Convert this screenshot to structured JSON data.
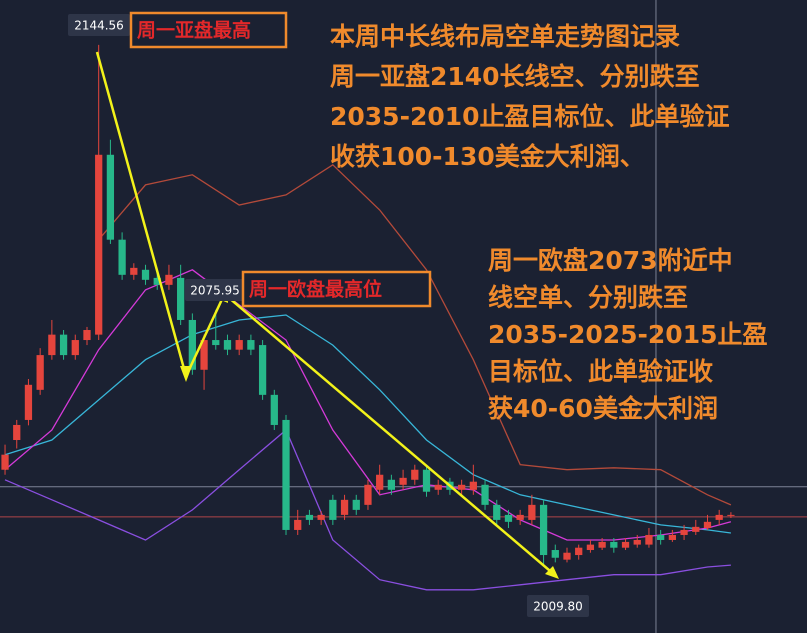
{
  "chart_data": {
    "type": "candlestick",
    "background": "#1b2132",
    "up_color": "#e5453d",
    "down_color": "#27b88a",
    "xlim": [
      -0.43,
      68.5
    ],
    "ylim": [
      1992.2,
      2156.2
    ],
    "ohlc": [
      [
        2034.5,
        2041.0,
        2033.2,
        2038.4
      ],
      [
        2042.2,
        2047.4,
        2040.0,
        2046.1
      ],
      [
        2047.4,
        2058.0,
        2046.0,
        2056.5
      ],
      [
        2055.2,
        2066.0,
        2053.9,
        2064.2
      ],
      [
        2064.2,
        2073.3,
        2063.0,
        2069.5
      ],
      [
        2069.5,
        2070.7,
        2063.0,
        2064.2
      ],
      [
        2064.2,
        2069.5,
        2063.0,
        2068.1
      ],
      [
        2068.1,
        2071.5,
        2066.8,
        2070.7
      ],
      [
        2069.5,
        2144.56,
        2068.1,
        2116.1
      ],
      [
        2116.1,
        2120.0,
        2093.0,
        2094.1
      ],
      [
        2094.1,
        2096.0,
        2083.7,
        2085.0
      ],
      [
        2085.0,
        2088.0,
        2083.7,
        2086.8
      ],
      [
        2086.3,
        2087.6,
        2082.4,
        2083.7
      ],
      [
        2084.2,
        2085.5,
        2081.1,
        2082.4
      ],
      [
        2082.4,
        2087.6,
        2081.1,
        2085.0
      ],
      [
        2084.2,
        2087.6,
        2072.0,
        2073.3
      ],
      [
        2073.3,
        2075.0,
        2059.1,
        2060.4
      ],
      [
        2060.4,
        2069.5,
        2055.2,
        2068.1
      ],
      [
        2068.1,
        2075.95,
        2065.6,
        2066.8
      ],
      [
        2068.1,
        2069.5,
        2064.2,
        2065.6
      ],
      [
        2065.6,
        2069.5,
        2064.2,
        2068.1
      ],
      [
        2068.1,
        2069.5,
        2064.2,
        2065.6
      ],
      [
        2066.8,
        2068.1,
        2052.6,
        2053.9
      ],
      [
        2053.9,
        2055.2,
        2044.8,
        2046.1
      ],
      [
        2047.4,
        2048.7,
        2017.6,
        2018.9
      ],
      [
        2018.9,
        2024.1,
        2017.6,
        2021.5
      ],
      [
        2022.8,
        2024.1,
        2020.2,
        2021.5
      ],
      [
        2021.5,
        2023.8,
        2020.2,
        2022.8
      ],
      [
        2026.7,
        2028.0,
        2020.2,
        2021.5
      ],
      [
        2022.8,
        2028.0,
        2021.5,
        2026.7
      ],
      [
        2026.7,
        2028.0,
        2022.8,
        2024.1
      ],
      [
        2025.4,
        2031.9,
        2024.1,
        2030.6
      ],
      [
        2029.3,
        2035.8,
        2028.0,
        2033.2
      ],
      [
        2031.9,
        2033.2,
        2028.0,
        2029.3
      ],
      [
        2030.6,
        2034.5,
        2029.3,
        2032.4
      ],
      [
        2031.9,
        2035.8,
        2030.6,
        2034.5
      ],
      [
        2034.5,
        2035.8,
        2027.5,
        2028.8
      ],
      [
        2029.3,
        2031.9,
        2028.0,
        2030.6
      ],
      [
        2031.4,
        2032.4,
        2028.0,
        2029.3
      ],
      [
        2029.3,
        2031.9,
        2028.0,
        2030.6
      ],
      [
        2029.3,
        2035.8,
        2028.0,
        2031.4
      ],
      [
        2030.6,
        2031.9,
        2024.1,
        2025.4
      ],
      [
        2025.4,
        2026.7,
        2020.2,
        2021.5
      ],
      [
        2022.8,
        2024.1,
        2019.4,
        2021.0
      ],
      [
        2021.5,
        2024.1,
        2020.2,
        2022.8
      ],
      [
        2021.5,
        2028.0,
        2020.2,
        2025.4
      ],
      [
        2025.4,
        2026.7,
        2009.8,
        2012.4
      ],
      [
        2013.7,
        2015.1,
        2010.5,
        2011.7
      ],
      [
        2011.2,
        2014.3,
        2010.5,
        2013.0
      ],
      [
        2012.4,
        2015.1,
        2011.2,
        2014.3
      ],
      [
        2013.7,
        2016.3,
        2013.0,
        2015.1
      ],
      [
        2014.3,
        2016.8,
        2013.7,
        2015.8
      ],
      [
        2015.8,
        2016.8,
        2013.0,
        2014.3
      ],
      [
        2014.3,
        2016.8,
        2013.7,
        2015.8
      ],
      [
        2015.1,
        2017.6,
        2014.3,
        2016.3
      ],
      [
        2015.1,
        2019.4,
        2014.3,
        2017.6
      ],
      [
        2017.6,
        2018.9,
        2015.1,
        2016.3
      ],
      [
        2016.3,
        2018.9,
        2015.8,
        2017.6
      ],
      [
        2017.6,
        2020.2,
        2016.3,
        2018.9
      ],
      [
        2018.4,
        2021.5,
        2017.6,
        2019.7
      ],
      [
        2019.4,
        2022.8,
        2018.9,
        2021.0
      ],
      [
        2021.5,
        2024.1,
        2020.2,
        2022.8
      ],
      [
        2022.8,
        2023.5,
        2022.0,
        2022.8
      ]
    ],
    "x": [
      0,
      4,
      8,
      12,
      16,
      20,
      24,
      28,
      32,
      36,
      40,
      44,
      48,
      52,
      56,
      60,
      62
    ],
    "series": [
      {
        "color": "#b34a3a",
        "values": [
          null,
          null,
          2094.1,
          2108.3,
          2110.9,
          2103.1,
          2105.7,
          2113.5,
          2101.8,
          2086.3,
          2063.0,
          2035.8,
          2034.5,
          2035.0,
          2034.5,
          2028.0,
          2025.4
        ]
      },
      {
        "color": "#38b6d8",
        "values": [
          2038.4,
          2042.2,
          2052.6,
          2063.0,
          2069.5,
          2073.3,
          2074.6,
          2066.8,
          2055.2,
          2042.2,
          2033.2,
          2028.0,
          2025.4,
          2022.8,
          2020.2,
          2018.9,
          2018.1
        ]
      },
      {
        "color": "#8a4fe0",
        "values": [
          2031.9,
          2026.7,
          2021.5,
          2016.3,
          2024.1,
          2034.5,
          2044.8,
          2016.3,
          2006.0,
          2003.4,
          2003.4,
          2004.7,
          2006.0,
          2007.3,
          2007.3,
          2009.3,
          2009.8
        ]
      },
      {
        "color": "#d43ad8",
        "values": [
          2034.5,
          2044.8,
          2065.6,
          2081.1,
          2086.3,
          2077.2,
          2068.1,
          2044.8,
          2028.0,
          2030.6,
          2029.3,
          2021.5,
          2016.3,
          2016.3,
          2017.6,
          2019.4,
          2021.0
        ]
      }
    ],
    "hlines": [
      {
        "value": 2030.1,
        "color": "#7c8296"
      },
      {
        "value": 2022.3,
        "color": "#b0454a"
      }
    ],
    "vline": 55.6,
    "price_labels": [
      {
        "value": 2144.56,
        "label": "2144.56"
      },
      {
        "value": 2075.95,
        "label": "2075.95"
      },
      {
        "value": 2009.8,
        "label": "2009.80"
      }
    ],
    "boxes": [
      "周一亚盘最高",
      "周一欧盘最高位"
    ],
    "notes_top": [
      "本周中长线布局空单走势图记录",
      "周一亚盘2140长线空、分别跌至",
      "2035-2010止盈目标位、此单验证",
      "收获100-130美金大利润、"
    ],
    "notes_mid": [
      "周一欧盘2073附近中",
      "线空单、分别跌至",
      "2035-2025-2015止盈",
      "目标位、此单验证收",
      "获40-60美金大利润"
    ]
  }
}
